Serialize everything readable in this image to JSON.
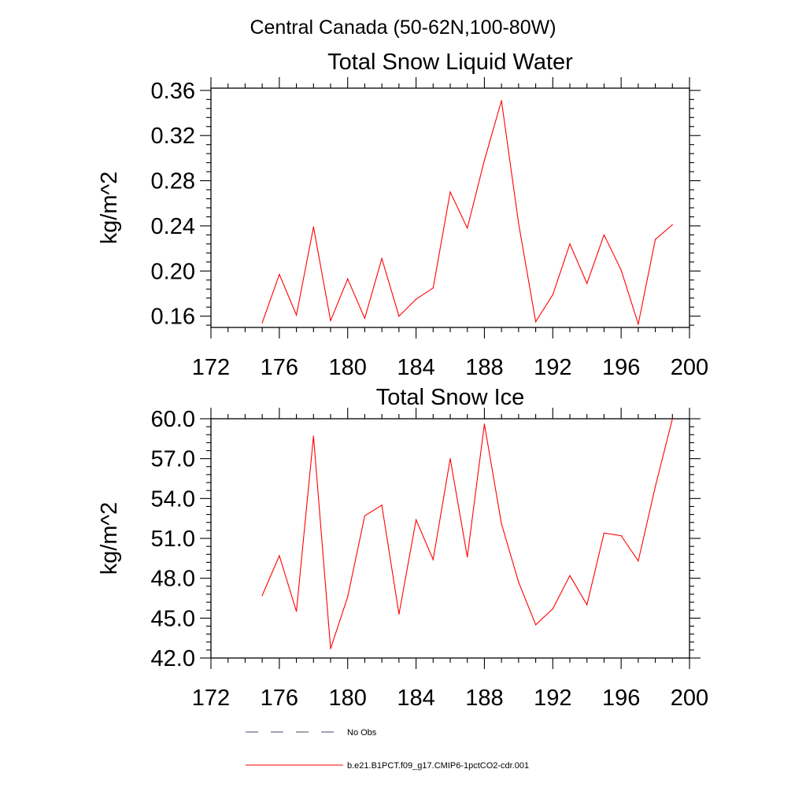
{
  "figure": {
    "title": "Central Canada (50-62N,100-80W)"
  },
  "chart_data": [
    {
      "type": "line",
      "title": "Total Snow Liquid Water",
      "xlabel": "",
      "ylabel": "kg/m^2",
      "xlim": [
        172,
        200
      ],
      "ylim": [
        0.15,
        0.362
      ],
      "xticks": [
        172,
        176,
        180,
        184,
        188,
        192,
        196,
        200
      ],
      "xtick_labels": [
        "172",
        "176",
        "180",
        "184",
        "188",
        "192",
        "196",
        "200"
      ],
      "yticks": [
        0.16,
        0.2,
        0.24,
        0.28,
        0.32,
        0.36
      ],
      "ytick_labels": [
        "0.16",
        "0.20",
        "0.24",
        "0.28",
        "0.32",
        "0.36"
      ],
      "grid": false,
      "series": [
        {
          "name": "b.e21.B1PCT.f09_g17.CMIP6-1pctCO2-cdr.001",
          "color": "#ff0000",
          "x": [
            175,
            176,
            177,
            178,
            179,
            180,
            181,
            182,
            183,
            184,
            185,
            186,
            187,
            188,
            189,
            190,
            191,
            192,
            193,
            194,
            195,
            196,
            197,
            198,
            199
          ],
          "values": [
            0.154,
            0.197,
            0.161,
            0.239,
            0.156,
            0.193,
            0.158,
            0.211,
            0.16,
            0.175,
            0.185,
            0.27,
            0.238,
            0.298,
            0.351,
            0.242,
            0.155,
            0.179,
            0.224,
            0.189,
            0.232,
            0.201,
            0.153,
            0.228,
            0.241
          ]
        }
      ]
    },
    {
      "type": "line",
      "title": "Total Snow Ice",
      "xlabel": "",
      "ylabel": "kg/m^2",
      "xlim": [
        172,
        200
      ],
      "ylim": [
        42.0,
        60.0
      ],
      "xticks": [
        172,
        176,
        180,
        184,
        188,
        192,
        196,
        200
      ],
      "xtick_labels": [
        "172",
        "176",
        "180",
        "184",
        "188",
        "192",
        "196",
        "200"
      ],
      "yticks": [
        42.0,
        45.0,
        48.0,
        51.0,
        54.0,
        57.0,
        60.0
      ],
      "ytick_labels": [
        "42.0",
        "45.0",
        "48.0",
        "51.0",
        "54.0",
        "57.0",
        "60.0"
      ],
      "grid": false,
      "series": [
        {
          "name": "b.e21.B1PCT.f09_g17.CMIP6-1pctCO2-cdr.001",
          "color": "#ff0000",
          "x": [
            175,
            176,
            177,
            178,
            179,
            180,
            181,
            182,
            183,
            184,
            185,
            186,
            187,
            188,
            189,
            190,
            191,
            192,
            193,
            194,
            195,
            196,
            197,
            198,
            199
          ],
          "values": [
            46.7,
            49.7,
            45.5,
            58.7,
            42.7,
            46.6,
            52.7,
            53.5,
            45.3,
            52.4,
            49.4,
            57.0,
            49.6,
            59.6,
            52.1,
            47.7,
            44.5,
            45.7,
            48.2,
            46.0,
            51.4,
            51.2,
            49.3,
            54.9,
            60.0
          ]
        }
      ]
    }
  ],
  "legend": {
    "placement": "bottom",
    "items": [
      {
        "label": "No Obs",
        "color": "#4a4a6a",
        "dash": "dashed"
      },
      {
        "label": "b.e21.B1PCT.f09_g17.CMIP6-1pctCO2-cdr.001",
        "color": "#ff0000",
        "dash": "solid"
      }
    ]
  }
}
